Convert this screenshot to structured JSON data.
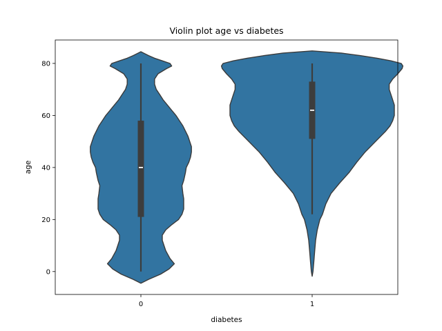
{
  "chart_data": {
    "type": "violin",
    "title": "Violin plot age vs diabetes",
    "xlabel": "diabetes",
    "ylabel": "age",
    "categories": [
      "0",
      "1"
    ],
    "ylim": [
      -8.8,
      89
    ],
    "yticks": [
      0,
      20,
      40,
      60,
      80
    ],
    "grid": false,
    "color": "#3274a1",
    "edge_color": "#3a3a3a",
    "box_color": "#3d3d3d",
    "median_color": "#ffffff",
    "violins": [
      {
        "category": "0",
        "median": 40,
        "q1": 21,
        "q3": 58,
        "whisker_low": 0,
        "whisker_high": 80,
        "profile": [
          [
            -4.5,
            0.0
          ],
          [
            -3,
            0.09
          ],
          [
            -1,
            0.23
          ],
          [
            1,
            0.33
          ],
          [
            3,
            0.39
          ],
          [
            5,
            0.34
          ],
          [
            8,
            0.29
          ],
          [
            10,
            0.27
          ],
          [
            12,
            0.25
          ],
          [
            14,
            0.25
          ],
          [
            16,
            0.29
          ],
          [
            18,
            0.36
          ],
          [
            20,
            0.44
          ],
          [
            22,
            0.48
          ],
          [
            24,
            0.5
          ],
          [
            26,
            0.5
          ],
          [
            28,
            0.5
          ],
          [
            30,
            0.49
          ],
          [
            33,
            0.48
          ],
          [
            35,
            0.5
          ],
          [
            38,
            0.52
          ],
          [
            40,
            0.53
          ],
          [
            42,
            0.56
          ],
          [
            44,
            0.58
          ],
          [
            46,
            0.59
          ],
          [
            48,
            0.59
          ],
          [
            50,
            0.57
          ],
          [
            52,
            0.55
          ],
          [
            54,
            0.52
          ],
          [
            56,
            0.49
          ],
          [
            58,
            0.45
          ],
          [
            60,
            0.41
          ],
          [
            62,
            0.36
          ],
          [
            64,
            0.31
          ],
          [
            66,
            0.26
          ],
          [
            68,
            0.22
          ],
          [
            70,
            0.18
          ],
          [
            72,
            0.16
          ],
          [
            74,
            0.16
          ],
          [
            76,
            0.2
          ],
          [
            78,
            0.3
          ],
          [
            79,
            0.36
          ],
          [
            80,
            0.34
          ],
          [
            81,
            0.25
          ],
          [
            82,
            0.16
          ],
          [
            83,
            0.09
          ],
          [
            84,
            0.03
          ],
          [
            84.5,
            0.0
          ]
        ]
      },
      {
        "category": "1",
        "median": 62,
        "q1": 51,
        "q3": 73,
        "whisker_low": 22,
        "whisker_high": 80,
        "profile": [
          [
            -1.8,
            0.0
          ],
          [
            0,
            0.01
          ],
          [
            4,
            0.02
          ],
          [
            8,
            0.03
          ],
          [
            12,
            0.04
          ],
          [
            16,
            0.06
          ],
          [
            20,
            0.09
          ],
          [
            22,
            0.12
          ],
          [
            26,
            0.16
          ],
          [
            30,
            0.22
          ],
          [
            34,
            0.32
          ],
          [
            38,
            0.43
          ],
          [
            42,
            0.52
          ],
          [
            46,
            0.62
          ],
          [
            50,
            0.74
          ],
          [
            52,
            0.8
          ],
          [
            54,
            0.86
          ],
          [
            56,
            0.91
          ],
          [
            58,
            0.94
          ],
          [
            60,
            0.96
          ],
          [
            62,
            0.96
          ],
          [
            64,
            0.96
          ],
          [
            66,
            0.94
          ],
          [
            68,
            0.92
          ],
          [
            70,
            0.9
          ],
          [
            72,
            0.9
          ],
          [
            74,
            0.94
          ],
          [
            76,
            1.0
          ],
          [
            78,
            1.05
          ],
          [
            79,
            1.06
          ],
          [
            80,
            1.04
          ],
          [
            81,
            0.92
          ],
          [
            82,
            0.76
          ],
          [
            83,
            0.56
          ],
          [
            84,
            0.34
          ],
          [
            84.8,
            0.0
          ]
        ]
      }
    ]
  }
}
